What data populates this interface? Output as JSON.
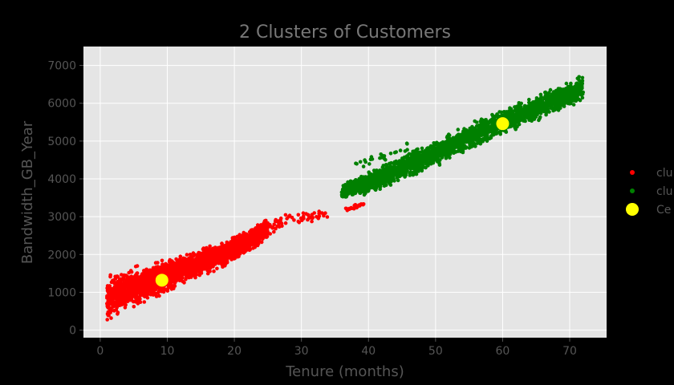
{
  "chart_data": {
    "type": "scatter",
    "title": "2 Clusters of Customers",
    "xlabel": "Tenure (months)",
    "ylabel": "Bandwidth_GB_Year",
    "xlim": [
      -2.5,
      75.5
    ],
    "ylim": [
      -200,
      7500
    ],
    "xticks": [
      0,
      10,
      20,
      30,
      40,
      50,
      60,
      70
    ],
    "yticks": [
      0,
      1000,
      2000,
      3000,
      4000,
      5000,
      6000,
      7000
    ],
    "grid": true,
    "legend_position": "right",
    "colors": {
      "background": "#000000",
      "plot_bg": "#e5e5e5",
      "grid": "#ffffff"
    },
    "series": [
      {
        "name": "clu",
        "color": "#ff0000",
        "kind": "band",
        "segments": [
          {
            "x": [
              1,
              3,
              5,
              8,
              10,
              13,
              16,
              19,
              22,
              25
            ],
            "y_center": [
              800,
              1000,
              1150,
              1300,
              1450,
              1650,
              1850,
              2050,
              2350,
              2700
            ],
            "y_spread": [
              650,
              650,
              600,
              550,
              500,
              450,
              400,
              400,
              350,
              300
            ],
            "count": 2600
          },
          {
            "x": [
              25,
              28,
              31,
              34
            ],
            "y_center": [
              2700,
              2950,
              3000,
              3050
            ],
            "y_spread": [
              300,
              250,
              200,
              150
            ],
            "count": 60
          },
          {
            "x": [
              36.5,
              37.5,
              38.5,
              39.5
            ],
            "y_center": [
              3200,
              3250,
              3300,
              3300
            ],
            "y_spread": [
              80,
              80,
              80,
              80
            ],
            "count": 25
          }
        ]
      },
      {
        "name": "clu",
        "color": "#008000",
        "kind": "band",
        "segments": [
          {
            "x": [
              36,
              40,
              45,
              50,
              55,
              60,
              65,
              70,
              72
            ],
            "y_center": [
              3650,
              3900,
              4300,
              4700,
              5100,
              5500,
              5850,
              6250,
              6400
            ],
            "y_spread": [
              200,
              350,
              400,
              400,
              400,
              400,
              400,
              400,
              400
            ],
            "count": 2700
          },
          {
            "x": [
              38,
              42,
              46
            ],
            "y_center": [
              4400,
              4550,
              4850
            ],
            "y_spread": [
              150,
              150,
              150
            ],
            "count": 25
          }
        ]
      },
      {
        "name": "Ce",
        "color": "#ffff00",
        "kind": "points",
        "points": [
          {
            "x": 9.2,
            "y": 1320
          },
          {
            "x": 60,
            "y": 5460
          }
        ]
      }
    ]
  }
}
